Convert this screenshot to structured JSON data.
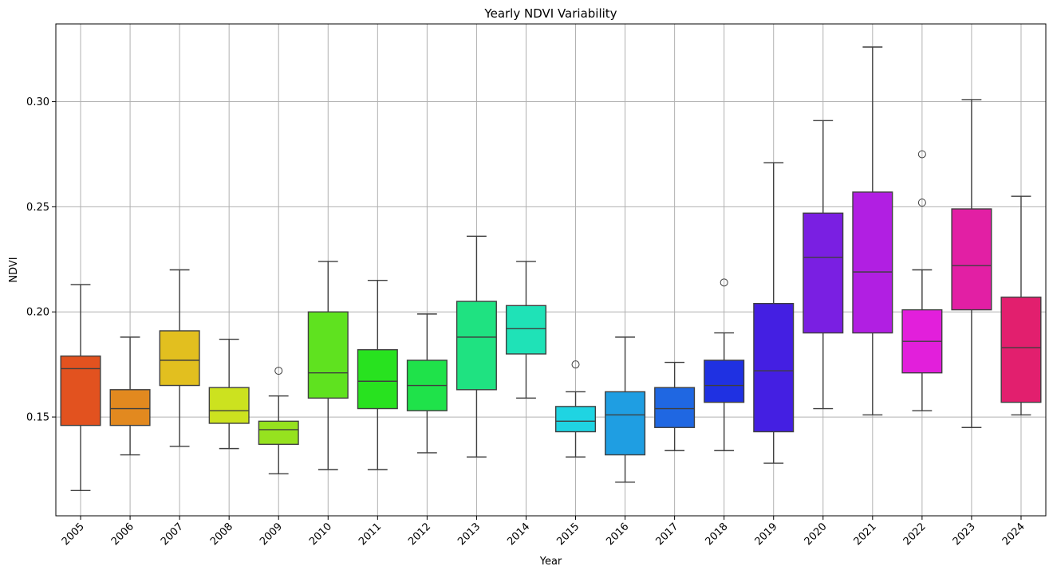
{
  "chart_data": {
    "type": "box",
    "title": "Yearly NDVI Variability",
    "xlabel": "Year",
    "ylabel": "NDVI",
    "ylim": [
      0.103,
      0.337
    ],
    "yticks": [
      0.15,
      0.2,
      0.25,
      0.3
    ],
    "ytick_labels": [
      "0.15",
      "0.20",
      "0.25",
      "0.30"
    ],
    "grid": true,
    "boxes": [
      {
        "category": "2005",
        "color": "#e2521f",
        "whisker_low": 0.115,
        "q1": 0.146,
        "median": 0.173,
        "q3": 0.179,
        "whisker_high": 0.213,
        "outliers": []
      },
      {
        "category": "2006",
        "color": "#e2891f",
        "whisker_low": 0.132,
        "q1": 0.146,
        "median": 0.154,
        "q3": 0.163,
        "whisker_high": 0.188,
        "outliers": []
      },
      {
        "category": "2007",
        "color": "#e2bf1f",
        "whisker_low": 0.136,
        "q1": 0.165,
        "median": 0.177,
        "q3": 0.191,
        "whisker_high": 0.22,
        "outliers": []
      },
      {
        "category": "2008",
        "color": "#cce21f",
        "whisker_low": 0.135,
        "q1": 0.147,
        "median": 0.153,
        "q3": 0.164,
        "whisker_high": 0.187,
        "outliers": []
      },
      {
        "category": "2009",
        "color": "#96e21f",
        "whisker_low": 0.123,
        "q1": 0.137,
        "median": 0.144,
        "q3": 0.148,
        "whisker_high": 0.16,
        "outliers": [
          0.172
        ]
      },
      {
        "category": "2010",
        "color": "#5fe21f",
        "whisker_low": 0.125,
        "q1": 0.159,
        "median": 0.171,
        "q3": 0.2,
        "whisker_high": 0.224,
        "outliers": []
      },
      {
        "category": "2011",
        "color": "#28e21f",
        "whisker_low": 0.125,
        "q1": 0.154,
        "median": 0.167,
        "q3": 0.182,
        "whisker_high": 0.215,
        "outliers": []
      },
      {
        "category": "2012",
        "color": "#1fe24a",
        "whisker_low": 0.133,
        "q1": 0.153,
        "median": 0.165,
        "q3": 0.177,
        "whisker_high": 0.199,
        "outliers": []
      },
      {
        "category": "2013",
        "color": "#1fe281",
        "whisker_low": 0.131,
        "q1": 0.163,
        "median": 0.188,
        "q3": 0.205,
        "whisker_high": 0.236,
        "outliers": []
      },
      {
        "category": "2014",
        "color": "#1fe2b7",
        "whisker_low": 0.159,
        "q1": 0.18,
        "median": 0.192,
        "q3": 0.203,
        "whisker_high": 0.224,
        "outliers": []
      },
      {
        "category": "2015",
        "color": "#1fd4e2",
        "whisker_low": 0.131,
        "q1": 0.143,
        "median": 0.148,
        "q3": 0.155,
        "whisker_high": 0.162,
        "outliers": [
          0.175
        ]
      },
      {
        "category": "2016",
        "color": "#1f9ee2",
        "whisker_low": 0.119,
        "q1": 0.132,
        "median": 0.151,
        "q3": 0.162,
        "whisker_high": 0.188,
        "outliers": []
      },
      {
        "category": "2017",
        "color": "#1f67e2",
        "whisker_low": 0.134,
        "q1": 0.145,
        "median": 0.154,
        "q3": 0.164,
        "whisker_high": 0.176,
        "outliers": []
      },
      {
        "category": "2018",
        "color": "#1f31e2",
        "whisker_low": 0.134,
        "q1": 0.157,
        "median": 0.165,
        "q3": 0.177,
        "whisker_high": 0.19,
        "outliers": [
          0.214
        ]
      },
      {
        "category": "2019",
        "color": "#441fe2",
        "whisker_low": 0.128,
        "q1": 0.143,
        "median": 0.172,
        "q3": 0.204,
        "whisker_high": 0.271,
        "outliers": []
      },
      {
        "category": "2020",
        "color": "#7a1fe2",
        "whisker_low": 0.154,
        "q1": 0.19,
        "median": 0.226,
        "q3": 0.247,
        "whisker_high": 0.291,
        "outliers": []
      },
      {
        "category": "2021",
        "color": "#b11fe2",
        "whisker_low": 0.151,
        "q1": 0.19,
        "median": 0.219,
        "q3": 0.257,
        "whisker_high": 0.326,
        "outliers": []
      },
      {
        "category": "2022",
        "color": "#e21fdb",
        "whisker_low": 0.153,
        "q1": 0.171,
        "median": 0.186,
        "q3": 0.201,
        "whisker_high": 0.22,
        "outliers": [
          0.252,
          0.275
        ]
      },
      {
        "category": "2023",
        "color": "#e21fa4",
        "whisker_low": 0.145,
        "q1": 0.201,
        "median": 0.222,
        "q3": 0.249,
        "whisker_high": 0.301,
        "outliers": []
      },
      {
        "category": "2024",
        "color": "#e21f6e",
        "whisker_low": 0.151,
        "q1": 0.157,
        "median": 0.183,
        "q3": 0.207,
        "whisker_high": 0.255,
        "outliers": []
      }
    ]
  }
}
